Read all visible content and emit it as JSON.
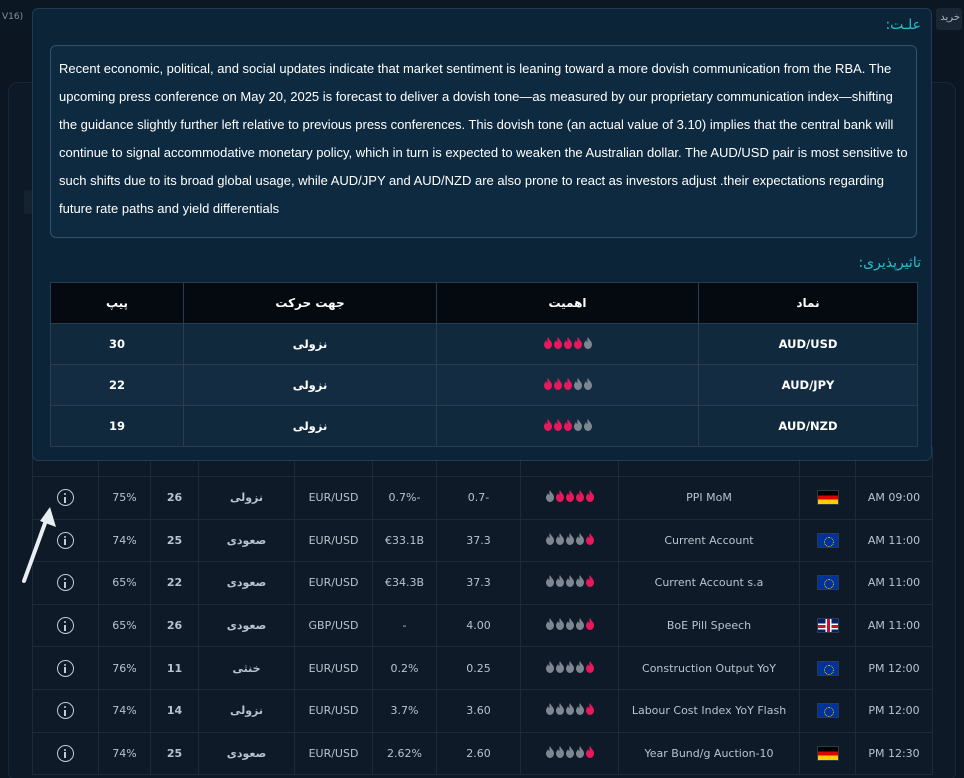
{
  "topbar": {
    "version": "V16)",
    "right_button": "خرید"
  },
  "modal": {
    "reason_title": "علـت:",
    "reason_text": "Recent economic, political, and social updates indicate that market sentiment is leaning toward a more dovish communication from the RBA. The upcoming press conference on May 20, 2025 is forecast to deliver a dovish tone—as measured by our proprietary communication index—shifting the guidance slightly further left relative to previous press conferences. This dovish tone (an actual value of 3.10) implies that the central bank will continue to signal accommodative monetary policy, which in turn is expected to weaken the Australian dollar. The AUD/USD pair is most sensitive to such shifts due to its broad global usage, while AUD/JPY and AUD/NZD are also prone to react as investors adjust .their expectations regarding future rate paths and yield differentials",
    "impact_title": "تاثیرپذیری:",
    "impact_headers": {
      "pip": "پیپ",
      "direction": "جهت حرکت",
      "importance": "اهمیت",
      "symbol": "نماد"
    },
    "impact_rows": [
      {
        "pip": "30",
        "direction": "نزولی",
        "importance": 4,
        "symbol": "AUD/USD"
      },
      {
        "pip": "22",
        "direction": "نزولی",
        "importance": 3,
        "symbol": "AUD/JPY"
      },
      {
        "pip": "19",
        "direction": "نزولی",
        "importance": 3,
        "symbol": "AUD/NZD"
      }
    ]
  },
  "events": [
    {
      "pct": "75%",
      "pip": "26",
      "dir": "نزولی",
      "dir_type": "down",
      "pair": "EUR/USD",
      "actual": "0.7%-",
      "forecast": "0.7-",
      "importance": 4,
      "name": "PPI MoM",
      "flag": "de",
      "time": "AM 09:00"
    },
    {
      "pct": "74%",
      "pip": "25",
      "dir": "صعودی",
      "dir_type": "up",
      "pair": "EUR/USD",
      "actual": "€33.1B",
      "forecast": "37.3",
      "importance": 1,
      "name": "Current Account",
      "flag": "eu",
      "time": "AM 11:00"
    },
    {
      "pct": "65%",
      "pip": "22",
      "dir": "صعودی",
      "dir_type": "up",
      "pair": "EUR/USD",
      "actual": "€34.3B",
      "forecast": "37.3",
      "importance": 1,
      "name": "Current Account s.a",
      "flag": "eu",
      "time": "AM 11:00"
    },
    {
      "pct": "65%",
      "pip": "26",
      "dir": "صعودی",
      "dir_type": "up",
      "pair": "GBP/USD",
      "actual": "-",
      "forecast": "4.00",
      "importance": 1,
      "name": "BoE Pill Speech",
      "flag": "uk",
      "time": "AM 11:00"
    },
    {
      "pct": "76%",
      "pip": "11",
      "dir": "خنثی",
      "dir_type": "neu",
      "pair": "EUR/USD",
      "actual": "0.2%",
      "forecast": "0.25",
      "importance": 1,
      "name": "Construction Output YoY",
      "flag": "eu",
      "time": "PM 12:00"
    },
    {
      "pct": "74%",
      "pip": "14",
      "dir": "نزولی",
      "dir_type": "down",
      "pair": "EUR/USD",
      "actual": "3.7%",
      "forecast": "3.60",
      "importance": 1,
      "name": "Labour Cost Index YoY Flash",
      "flag": "eu",
      "time": "PM 12:00"
    },
    {
      "pct": "74%",
      "pip": "25",
      "dir": "صعودی",
      "dir_type": "up",
      "pair": "EUR/USD",
      "actual": "2.62%",
      "forecast": "2.60",
      "importance": 1,
      "name": "Year Bund/g Auction-10",
      "flag": "de",
      "time": "PM 12:30"
    }
  ],
  "colors": {
    "accent": "#26c2c9",
    "down": "#ff3a4a",
    "up": "#4c9a24",
    "flame_active": "#e8185c",
    "flame_inactive": "#7d8792"
  },
  "icons": {
    "info": "info-circle-icon",
    "flame": "flame-icon",
    "arrow": "pointer-arrow-icon"
  }
}
